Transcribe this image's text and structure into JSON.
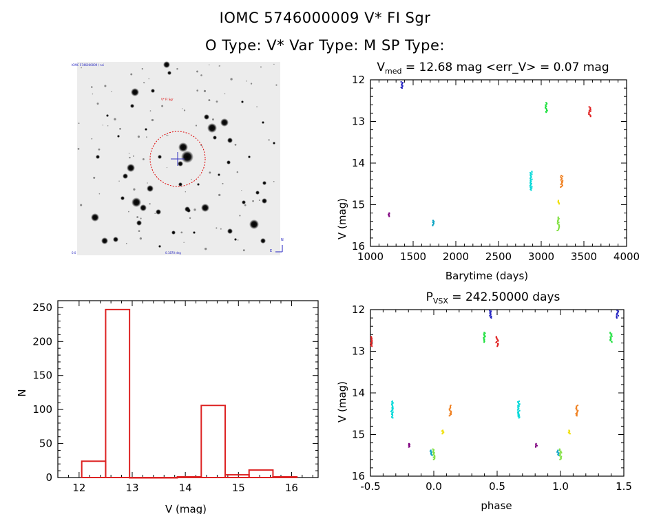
{
  "header": {
    "title_line1": "IOMC 5746000009    V* FI Sgr",
    "title_line2": "O Type: V*  Var Type: M  SP Type:"
  },
  "sky_image": {
    "caption_tl": "IOMC 5746000009 / nsi",
    "caption_target": "V* FI Sgr",
    "caption_bl": "0.0",
    "caption_bc": "0.1870 deg",
    "caption_br": "E",
    "compass_n": "N"
  },
  "chart_data": [
    {
      "id": "lightcurve",
      "type": "scatter",
      "title": "V_med = 12.68 mag <err_V> = 0.07 mag",
      "title_prefix": "V",
      "title_sub": "med",
      "title_rest": " = 12.68 mag <err_V> = 0.07 mag",
      "xlabel": "Barytime (days)",
      "ylabel": "V (mag)",
      "xlim": [
        1000,
        4000
      ],
      "ylim": [
        12,
        16
      ],
      "y_inverted": true,
      "xticks": [
        1000,
        1500,
        2000,
        2500,
        3000,
        3500,
        4000
      ],
      "yticks": [
        12,
        13,
        14,
        15,
        16
      ],
      "series": [
        {
          "name": "g1",
          "color": "#800080",
          "x": 1220,
          "y": [
            15.2,
            15.28
          ]
        },
        {
          "name": "g2",
          "color": "#2020c0",
          "x": 1370,
          "y": [
            12.05,
            12.2
          ]
        },
        {
          "name": "g3",
          "color": "#00a0c0",
          "x": 1740,
          "y": [
            15.38,
            15.5
          ]
        },
        {
          "name": "g4",
          "color": "#00d8d8",
          "x": 2880,
          "y": [
            14.2,
            14.65
          ]
        },
        {
          "name": "g5",
          "color": "#20e040",
          "x": 3060,
          "y": [
            12.55,
            12.78
          ]
        },
        {
          "name": "g6",
          "color": "#80e040",
          "x": 3200,
          "y": [
            15.3,
            15.62
          ]
        },
        {
          "name": "g7",
          "color": "#f0e000",
          "x": 3205,
          "y": [
            14.9,
            14.98
          ]
        },
        {
          "name": "g8",
          "color": "#f08020",
          "x": 3240,
          "y": [
            14.3,
            14.58
          ]
        },
        {
          "name": "g9",
          "color": "#e02020",
          "x": 3570,
          "y": [
            12.65,
            12.88
          ]
        }
      ]
    },
    {
      "id": "histogram",
      "type": "bar",
      "xlabel": "V (mag)",
      "ylabel": "N",
      "xlim": [
        11.6,
        16.5
      ],
      "ylim": [
        0,
        260
      ],
      "xticks": [
        12,
        13,
        14,
        15,
        16
      ],
      "yticks": [
        0,
        50,
        100,
        150,
        200,
        250
      ],
      "bin_edges": [
        12.05,
        12.5,
        12.95,
        13.4,
        13.85,
        14.3,
        14.75,
        15.2,
        15.65,
        16.1
      ],
      "values": [
        24,
        247,
        0,
        0,
        1,
        106,
        4,
        11,
        1
      ],
      "color": "#dd2222"
    },
    {
      "id": "phased",
      "type": "scatter",
      "title": "P_vsx = 242.50000 days",
      "title_prefix": "P",
      "title_sub": "VSX",
      "title_rest": " = 242.50000 days",
      "xlabel": "phase",
      "ylabel": "V (mag)",
      "xlim": [
        -0.5,
        1.5
      ],
      "ylim": [
        12,
        16
      ],
      "y_inverted": true,
      "xticks": [
        -0.5,
        0.0,
        0.5,
        1.0,
        1.5
      ],
      "xtick_labels": [
        "-0.5",
        "0.0",
        "0.5",
        "1.0",
        "1.5"
      ],
      "yticks": [
        12,
        13,
        14,
        15,
        16
      ],
      "series": [
        {
          "name": "g1",
          "color": "#800080",
          "x": [
            -0.19,
            0.81
          ],
          "y": [
            15.22,
            15.3
          ]
        },
        {
          "name": "g2",
          "color": "#2020c0",
          "x": [
            0.45,
            1.45
          ],
          "y": [
            12.02,
            12.2
          ]
        },
        {
          "name": "g3",
          "color": "#00a0c0",
          "x": [
            -0.02,
            0.98
          ],
          "y": [
            15.38,
            15.5
          ]
        },
        {
          "name": "g4",
          "color": "#00d8d8",
          "x": [
            -0.33,
            0.67
          ],
          "y": [
            14.2,
            14.6
          ]
        },
        {
          "name": "g5",
          "color": "#20e040",
          "x": [
            0.4,
            1.4
          ],
          "y": [
            12.55,
            12.78
          ]
        },
        {
          "name": "g6",
          "color": "#80e040",
          "x": [
            0.0,
            1.0
          ],
          "y": [
            15.35,
            15.6
          ]
        },
        {
          "name": "g7",
          "color": "#f0e000",
          "x": [
            0.07,
            1.07
          ],
          "y": [
            14.9,
            14.98
          ]
        },
        {
          "name": "g8",
          "color": "#f08020",
          "x": [
            0.13,
            1.13
          ],
          "y": [
            14.3,
            14.55
          ]
        },
        {
          "name": "g9",
          "color": "#e02020",
          "x": [
            -0.49,
            0.5
          ],
          "y": [
            12.65,
            12.88
          ]
        }
      ]
    }
  ]
}
